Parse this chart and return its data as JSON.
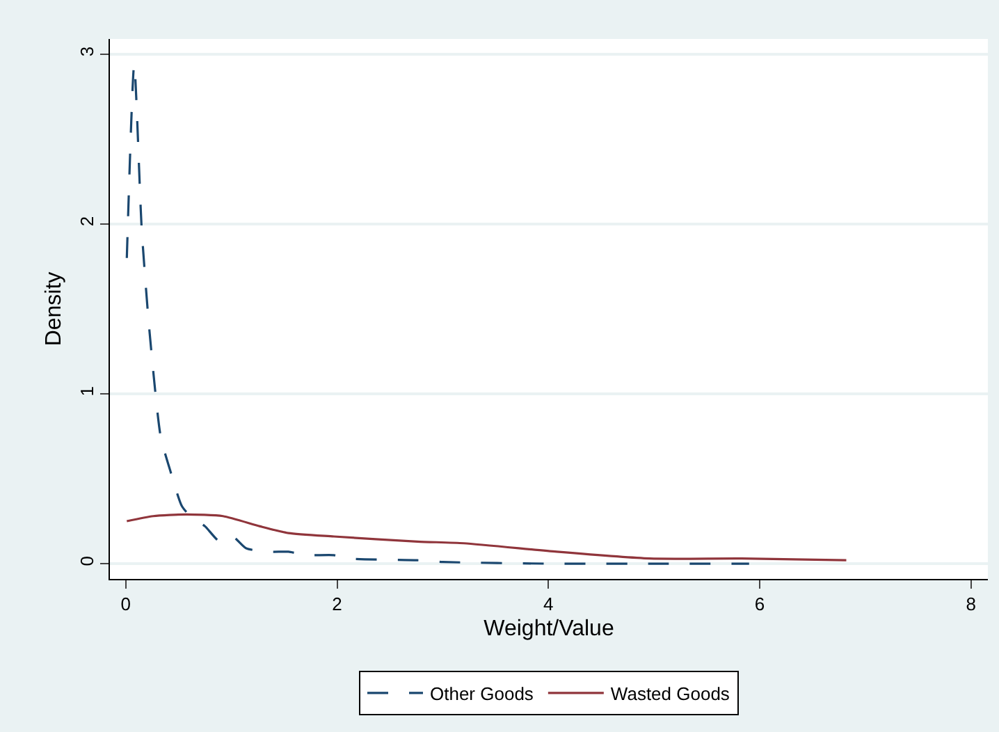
{
  "chart_data": {
    "type": "line",
    "xlabel": "Weight/Value",
    "ylabel": "Density",
    "xlim": [
      -0.15,
      8.16
    ],
    "ylim": [
      -0.09,
      3.09
    ],
    "xticks": [
      0,
      2,
      4,
      6,
      8
    ],
    "yticks": [
      0,
      1,
      2,
      3
    ],
    "grid": "y",
    "legend": "bottom",
    "series": [
      {
        "name": "Other Goods",
        "color": "#1a476f",
        "line_style": "dashed",
        "x": [
          0.01,
          0.08,
          0.15,
          0.22,
          0.33,
          0.42,
          0.53,
          0.61,
          0.75,
          0.89,
          1.01,
          1.14,
          1.36,
          1.54,
          1.71,
          1.97,
          2.1,
          2.76,
          3.0,
          4.0,
          5.0,
          5.9
        ],
        "values": [
          1.8,
          2.94,
          1.98,
          1.4,
          0.75,
          0.55,
          0.34,
          0.28,
          0.22,
          0.13,
          0.16,
          0.09,
          0.07,
          0.07,
          0.05,
          0.05,
          0.03,
          0.02,
          0.01,
          0.0,
          0.0,
          0.0
        ]
      },
      {
        "name": "Wasted Goods",
        "color": "#90353b",
        "line_style": "solid",
        "x": [
          0.01,
          0.26,
          0.57,
          0.92,
          1.27,
          1.54,
          1.97,
          2.76,
          3.2,
          4.08,
          4.96,
          5.83,
          6.82
        ],
        "values": [
          0.25,
          0.28,
          0.29,
          0.28,
          0.22,
          0.18,
          0.16,
          0.13,
          0.12,
          0.07,
          0.03,
          0.03,
          0.02
        ]
      }
    ]
  }
}
